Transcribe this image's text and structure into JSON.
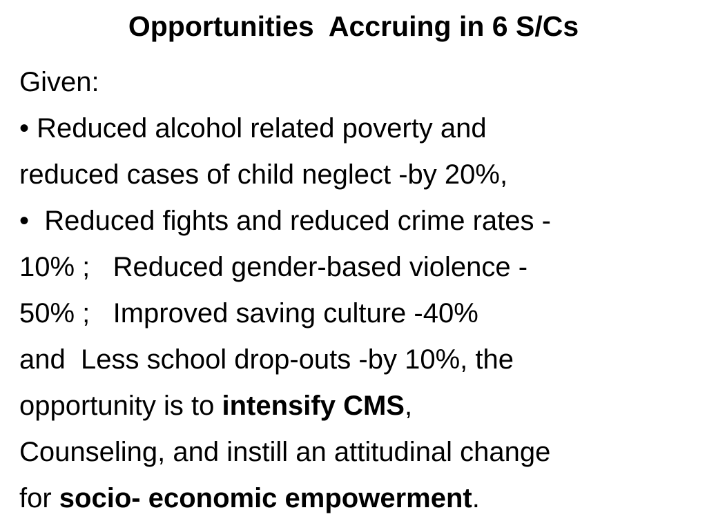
{
  "slide": {
    "title": "Opportunities  Accruing in 6 S/Cs",
    "lines": [
      [
        "Given:"
      ],
      [
        "• Reduced alcohol related poverty and"
      ],
      [
        "reduced cases of child neglect -by 20%,"
      ],
      [
        "•  Reduced fights and reduced crime rates -"
      ],
      [
        "10% ;   Reduced gender-based violence -"
      ],
      [
        "50% ;   Improved saving culture -40%"
      ],
      [
        "and  Less school drop-outs -by 10%, the"
      ],
      [
        "opportunity is to ",
        "intensify CMS",
        ","
      ],
      [
        "Counseling, and instill an attitudinal change"
      ],
      [
        "for ",
        "socio- economic empowerment",
        "."
      ]
    ]
  }
}
